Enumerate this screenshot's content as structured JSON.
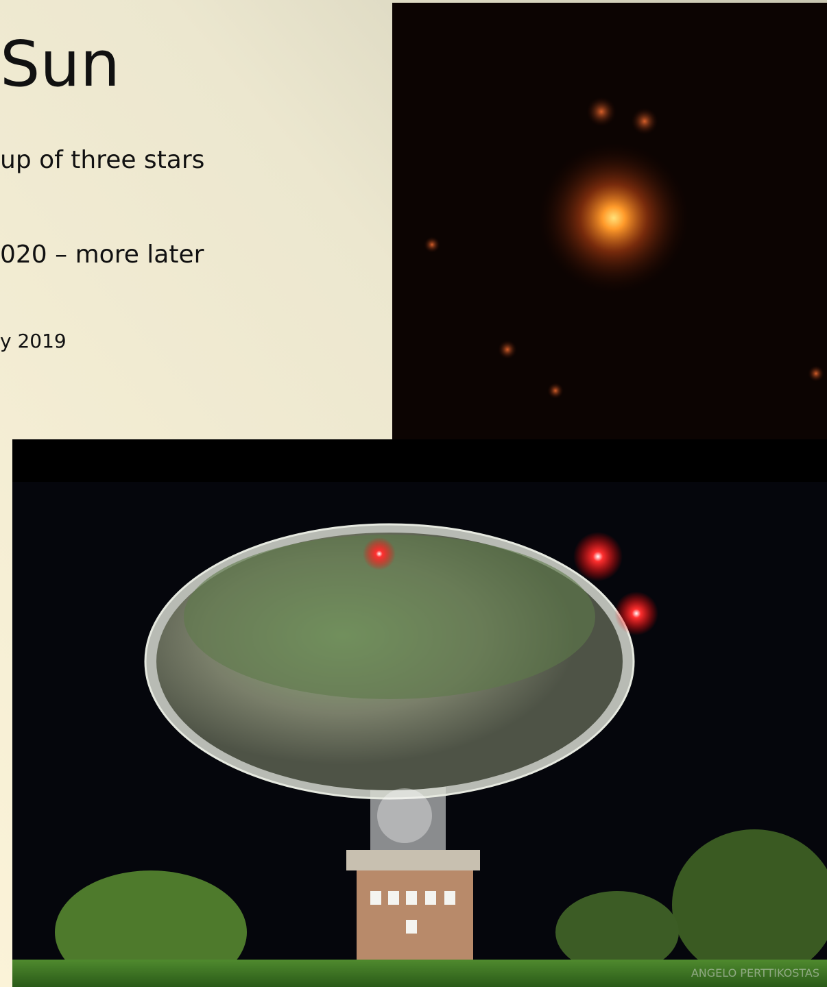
{
  "slide": {
    "title": "Sun",
    "bullets": [
      "up of three stars",
      "020 – more later",
      "y 2019"
    ],
    "photo_credit": "ANGELO PERTTIKOSTAS"
  }
}
